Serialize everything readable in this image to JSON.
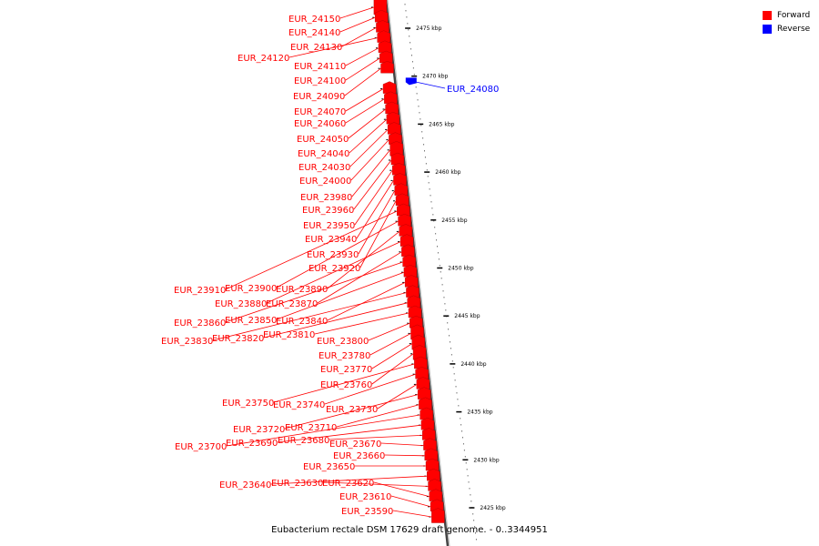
{
  "caption": "Eubacterium rectale DSM 17629 draft genome. - 0..3344951",
  "legend": {
    "forward_label": "Forward",
    "reverse_label": "Reverse",
    "forward_color": "#ff0000",
    "reverse_color": "#0000ff"
  },
  "scale_marks": [
    {
      "label": "2475 kbp"
    },
    {
      "label": "2470 kbp"
    },
    {
      "label": "2465 kbp"
    },
    {
      "label": "2460 kbp"
    },
    {
      "label": "2455 kbp"
    },
    {
      "label": "2450 kbp"
    },
    {
      "label": "2445 kbp"
    },
    {
      "label": "2440 kbp"
    },
    {
      "label": "2435 kbp"
    },
    {
      "label": "2430 kbp"
    },
    {
      "label": "2425 kbp"
    }
  ],
  "genes": [
    {
      "name": "EUR_24150",
      "strand": "forward"
    },
    {
      "name": "EUR_24140",
      "strand": "forward"
    },
    {
      "name": "EUR_24130",
      "strand": "forward"
    },
    {
      "name": "EUR_24120",
      "strand": "forward"
    },
    {
      "name": "EUR_24110",
      "strand": "forward"
    },
    {
      "name": "EUR_24100",
      "strand": "forward"
    },
    {
      "name": "EUR_24090",
      "strand": "forward"
    },
    {
      "name": "EUR_24080",
      "strand": "reverse"
    },
    {
      "name": "EUR_24070",
      "strand": "forward"
    },
    {
      "name": "EUR_24060",
      "strand": "forward"
    },
    {
      "name": "EUR_24050",
      "strand": "forward"
    },
    {
      "name": "EUR_24040",
      "strand": "forward"
    },
    {
      "name": "EUR_24030",
      "strand": "forward"
    },
    {
      "name": "EUR_24000",
      "strand": "forward"
    },
    {
      "name": "EUR_23980",
      "strand": "forward"
    },
    {
      "name": "EUR_23960",
      "strand": "forward"
    },
    {
      "name": "EUR_23950",
      "strand": "forward"
    },
    {
      "name": "EUR_23940",
      "strand": "forward"
    },
    {
      "name": "EUR_23930",
      "strand": "forward"
    },
    {
      "name": "EUR_23920",
      "strand": "forward"
    },
    {
      "name": "EUR_23910",
      "strand": "forward"
    },
    {
      "name": "EUR_23900",
      "strand": "forward"
    },
    {
      "name": "EUR_23890",
      "strand": "forward"
    },
    {
      "name": "EUR_23880",
      "strand": "forward"
    },
    {
      "name": "EUR_23870",
      "strand": "forward"
    },
    {
      "name": "EUR_23860",
      "strand": "forward"
    },
    {
      "name": "EUR_23850",
      "strand": "forward"
    },
    {
      "name": "EUR_23840",
      "strand": "forward"
    },
    {
      "name": "EUR_23830",
      "strand": "forward"
    },
    {
      "name": "EUR_23820",
      "strand": "forward"
    },
    {
      "name": "EUR_23810",
      "strand": "forward"
    },
    {
      "name": "EUR_23800",
      "strand": "forward"
    },
    {
      "name": "EUR_23780",
      "strand": "forward"
    },
    {
      "name": "EUR_23770",
      "strand": "forward"
    },
    {
      "name": "EUR_23760",
      "strand": "forward"
    },
    {
      "name": "EUR_23750",
      "strand": "forward"
    },
    {
      "name": "EUR_23740",
      "strand": "forward"
    },
    {
      "name": "EUR_23730",
      "strand": "forward"
    },
    {
      "name": "EUR_23720",
      "strand": "forward"
    },
    {
      "name": "EUR_23710",
      "strand": "forward"
    },
    {
      "name": "EUR_23700",
      "strand": "forward"
    },
    {
      "name": "EUR_23690",
      "strand": "forward"
    },
    {
      "name": "EUR_23680",
      "strand": "forward"
    },
    {
      "name": "EUR_23670",
      "strand": "forward"
    },
    {
      "name": "EUR_23660",
      "strand": "forward"
    },
    {
      "name": "EUR_23650",
      "strand": "forward"
    },
    {
      "name": "EUR_23640",
      "strand": "forward"
    },
    {
      "name": "EUR_23630",
      "strand": "forward"
    },
    {
      "name": "EUR_23620",
      "strand": "forward"
    },
    {
      "name": "EUR_23610",
      "strand": "forward"
    },
    {
      "name": "EUR_23590",
      "strand": "forward"
    }
  ]
}
